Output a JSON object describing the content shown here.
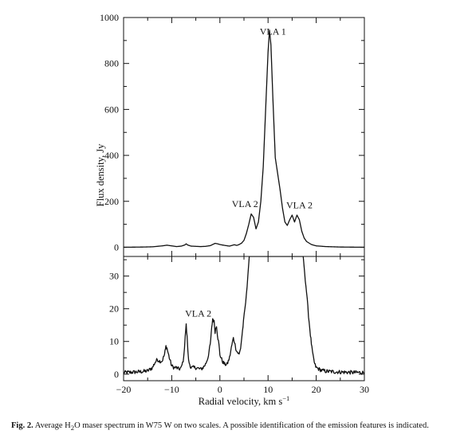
{
  "chart_data": {
    "type": "line",
    "xlabel_text": "Radial velocity, km s",
    "xlabel_sup": "−1",
    "ylabel": "Flux density, Jy",
    "xlim": [
      -20,
      30
    ],
    "x_ticks": [
      -20,
      -10,
      0,
      10,
      20,
      30
    ],
    "panels": [
      {
        "name": "top",
        "ylim": [
          -40,
          1000
        ],
        "y_ticks": [
          0,
          200,
          400,
          600,
          800,
          1000
        ],
        "annotations": [
          {
            "text": "VLA 1",
            "x": 11.0,
            "y": 925
          },
          {
            "text": "VLA 2",
            "x": 5.2,
            "y": 175
          },
          {
            "text": "VLA 2",
            "x": 16.5,
            "y": 170
          }
        ],
        "series": [
          {
            "x": [
              -20,
              -16,
              -14,
              -13,
              -12,
              -11,
              -10,
              -9,
              -8,
              -7.3,
              -7,
              -6.7,
              -6,
              -5,
              -4,
              -3,
              -2,
              -1.5,
              -1,
              -0.5,
              0,
              0.5,
              1,
              2,
              2.5,
              3,
              3.5,
              4,
              4.5,
              5,
              5.5,
              6,
              6.5,
              7,
              7.5,
              8,
              8.5,
              9,
              9.5,
              10,
              10.3,
              10.6,
              11,
              11.5,
              12,
              12.5,
              13,
              13.5,
              14,
              14.5,
              15,
              15.5,
              16,
              16.5,
              17,
              17.5,
              18,
              19,
              20,
              22,
              25,
              30
            ],
            "y": [
              0,
              1,
              2,
              4,
              6,
              9,
              6,
              3,
              5,
              10,
              15,
              10,
              5,
              4,
              3,
              4,
              7,
              12,
              17,
              15,
              12,
              10,
              8,
              5,
              8,
              11,
              8,
              12,
              18,
              30,
              60,
              100,
              145,
              130,
              80,
              110,
              200,
              350,
              600,
              850,
              945,
              880,
              650,
              390,
              320,
              250,
              170,
              110,
              95,
              120,
              140,
              110,
              140,
              120,
              70,
              40,
              25,
              12,
              6,
              3,
              1,
              0
            ]
          }
        ]
      },
      {
        "name": "bottom",
        "ylim": [
          -2,
          36
        ],
        "y_ticks": [
          0,
          10,
          20,
          30
        ],
        "annotations": [
          {
            "text": "VLA 2",
            "x": -4.5,
            "y": 17.6
          }
        ],
        "series": [
          {
            "x": [
              -20,
              -18,
              -16,
              -15,
              -14,
              -13.5,
              -13,
              -12.5,
              -12,
              -11.5,
              -11.2,
              -11,
              -10.5,
              -10,
              -9.5,
              -9,
              -8.5,
              -8,
              -7.5,
              -7.2,
              -7,
              -6.8,
              -6.5,
              -6,
              -5,
              -4,
              -3.5,
              -3,
              -2.5,
              -2,
              -1.7,
              -1.5,
              -1.2,
              -1,
              -0.7,
              -0.5,
              -0.2,
              0,
              0.5,
              1,
              1.5,
              2,
              2.5,
              2.8,
              3,
              3.3,
              3.5,
              4,
              4.3,
              4.6,
              4.9,
              5.2,
              5.5,
              5.8,
              6.1,
              17.3,
              17.6,
              18,
              18.4,
              18.8,
              19.1,
              19.4,
              19.7,
              20,
              21,
              22,
              24,
              26,
              28,
              30
            ],
            "y": [
              0.5,
              0.6,
              0.8,
              1,
              2,
              3.5,
              4.5,
              4,
              4,
              6,
              8.5,
              8,
              5,
              2.5,
              2,
              2,
              1.5,
              2,
              5,
              12,
              15,
              11,
              4,
              2,
              2,
              1.5,
              2,
              3,
              5,
              9,
              14,
              17,
              16,
              13,
              15,
              12,
              9,
              6,
              4,
              3,
              3,
              5,
              9,
              11,
              10,
              8,
              7,
              6,
              8,
              12,
              16,
              20,
              24,
              30,
              36,
              36,
              31,
              25,
              18,
              12,
              8,
              5,
              3,
              2,
              1.2,
              0.9,
              0.7,
              0.6,
              0.5,
              0.5
            ]
          }
        ]
      }
    ]
  },
  "caption": {
    "label": "Fig. 2.",
    "text_before_sub": " Average H",
    "sub": "2",
    "text_after_sub": "O maser spectrum in W75 W on two scales. A possible identification of the emission features is indicated."
  }
}
